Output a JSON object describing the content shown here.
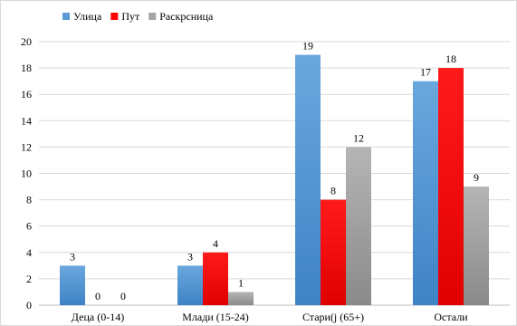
{
  "chart_data": {
    "type": "bar",
    "categories": [
      "Деца (0-14)",
      "Млади (15-24)",
      "Стари(ј (65+)",
      "Остали"
    ],
    "series": [
      {
        "name": "Улица",
        "values": [
          3,
          3,
          19,
          17
        ],
        "color": "#5b9bd5"
      },
      {
        "name": "Пут",
        "values": [
          0,
          4,
          8,
          18
        ],
        "color": "#ff0000"
      },
      {
        "name": "Раскрсница",
        "values": [
          0,
          1,
          12,
          9
        ],
        "color": "#a5a5a5"
      }
    ],
    "ylim": [
      0,
      20
    ],
    "yticks": [
      0,
      2,
      4,
      6,
      8,
      10,
      12,
      14,
      16,
      18,
      20
    ],
    "grid": true,
    "legend_position": "top-left",
    "title": "",
    "xlabel": "",
    "ylabel": ""
  }
}
